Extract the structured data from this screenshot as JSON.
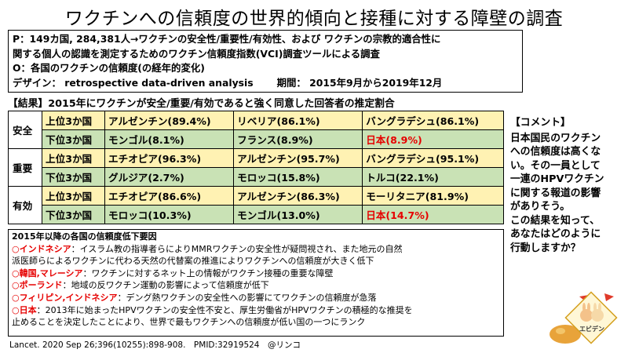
{
  "title": "ワクチンへの信頼度の世界的傾向と接種に対する障壁の調査",
  "pico": {
    "p": "P：149カ国, 284,381人→ワクチンの安全性/重要性/有効性、および ワクチンの宗教的適合性に",
    "p2": "関する個人の認識を測定するためのワクチン信頼度指数(VCI)調査ツールによる調査",
    "o": "O：各国のワクチンの信頼度(の経年的変化)",
    "design": "デザイン： retrospective data-driven analysis",
    "period": "期間： 2015年9月から2019年12月"
  },
  "results": {
    "heading": "【結果】2015年にワクチンが安全/重要/有効であると強く同意した回答者の推定割合",
    "top_label": "上位3か国",
    "bottom_label": "下位3か国",
    "categories": [
      {
        "name": "安全",
        "top": [
          "アルゼンチン(89.4%)",
          "リベリア(86.1%)",
          "バングラデシュ(86.1%)"
        ],
        "bottom": [
          "モンゴル(8.1%)",
          "フランス(8.9%)",
          "日本(8.9%)"
        ]
      },
      {
        "name": "重要",
        "top": [
          "エチオピア(96.3%)",
          "アルゼンチン(95.7%)",
          "バングラデシュ(95.1%)"
        ],
        "bottom": [
          "グルジア(2.7%)",
          "モロッコ(15.8%)",
          "トルコ(22.1%)"
        ]
      },
      {
        "name": "有効",
        "top": [
          "エチオピア(86.6%)",
          "アルゼンチン(86.3%)",
          "モーリタニア(81.9%)"
        ],
        "bottom": [
          "モロッコ(10.3%)",
          "モンゴル(13.0%)",
          "日本(14.7%)"
        ]
      }
    ],
    "highlight_color": "#e60000"
  },
  "comment": {
    "heading": "【コメント】",
    "lines": [
      "日本国民のワクチン",
      "への信頼度は高くな",
      "い。その一員として",
      "一連のHPVワクチン",
      "に関する報道の影響",
      "がありそう。",
      "この結果を知って、",
      "あなたはどのように",
      "行動しますか？"
    ]
  },
  "reasons": {
    "heading": "2015年以降の各国の信頼度低下要因",
    "items": [
      {
        "country": "○インドネシア",
        "text": "：イスラム教の指導者らによりMMRワクチンの安全性が疑問視され、また地元の自然"
      },
      {
        "country": "",
        "text": "派医師らによるワクチンに代わる天然の代替案の推進によりワクチンへの信頼度が大きく低下"
      },
      {
        "country": "○韓国,マレーシア",
        "text": "：ワクチンに対するネット上の情報がワクチン接種の重要な障壁"
      },
      {
        "country": "○ポーランド",
        "text": "：地域の反ワクチン運動の影響によって信頼度が低下"
      },
      {
        "country": "○フィリピン,インドネシア",
        "text": "：デング熱ワクチンの安全性への影響にてワクチンの信頼度が急落"
      },
      {
        "country": "○日本",
        "text": "：2013年に始まったHPVワクチンの安全性不安と、厚生労働省がHPVワクチンの積極的な推奨を"
      },
      {
        "country": "",
        "text": "止めることを決定したことにより、世界で最もワクチンへの信頼度が低い国の一つにランク"
      }
    ]
  },
  "citation": "Lancet. 2020 Sep 26;396(10255):898-908.　PMID:32919524　@リンコ",
  "logo": {
    "label": "エビデン"
  }
}
